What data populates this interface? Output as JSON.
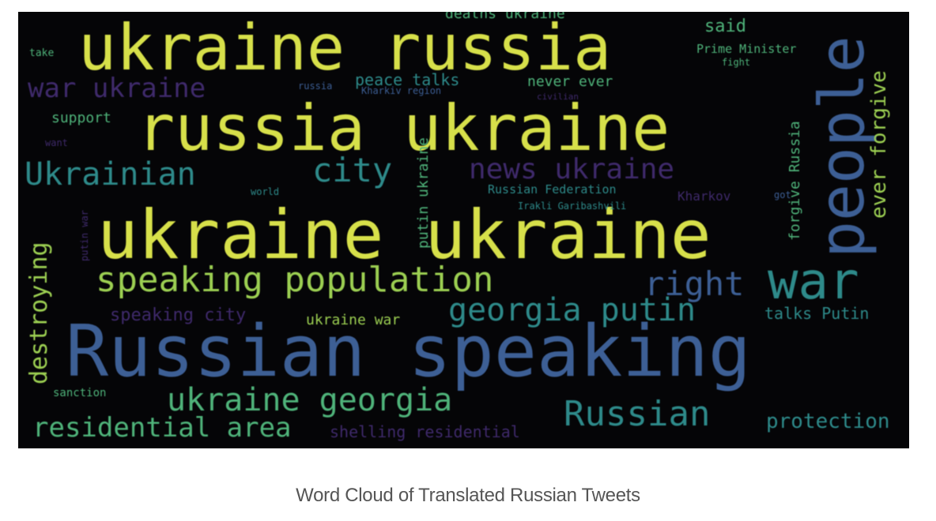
{
  "caption": "Word Cloud of Translated Russian Tweets",
  "palette": {
    "background": "#050507",
    "yellow": "#d7e04a",
    "lime": "#9ccf52",
    "green": "#4fb37a",
    "teal": "#2e8a8a",
    "blue": "#3d5f95",
    "purple": "#3f2a6b"
  },
  "words": [
    {
      "text": "ukraine russia",
      "color": "yellow"
    },
    {
      "text": "russia ukraine",
      "color": "yellow"
    },
    {
      "text": "ukraine ukraine",
      "color": "yellow"
    },
    {
      "text": "Russian speaking",
      "color": "blue"
    },
    {
      "text": "people",
      "color": "blue"
    },
    {
      "text": "war",
      "color": "teal"
    },
    {
      "text": "speaking population",
      "color": "lime"
    },
    {
      "text": "war ukraine",
      "color": "purple"
    },
    {
      "text": "Ukrainian",
      "color": "teal"
    },
    {
      "text": "city",
      "color": "teal"
    },
    {
      "text": "news ukraine",
      "color": "purple"
    },
    {
      "text": "right",
      "color": "blue"
    },
    {
      "text": "georgia putin",
      "color": "teal"
    },
    {
      "text": "ukraine georgia",
      "color": "green"
    },
    {
      "text": "Russian",
      "color": "teal"
    },
    {
      "text": "residential area",
      "color": "green"
    },
    {
      "text": "destroying",
      "color": "lime"
    },
    {
      "text": "ever forgive",
      "color": "lime"
    },
    {
      "text": "peace talks",
      "color": "teal"
    },
    {
      "text": "never ever",
      "color": "green"
    },
    {
      "text": "protection",
      "color": "teal"
    },
    {
      "text": "speaking city",
      "color": "purple"
    },
    {
      "text": "ukraine war",
      "color": "lime"
    },
    {
      "text": "talks Putin",
      "color": "teal"
    },
    {
      "text": "shelling residential",
      "color": "purple"
    },
    {
      "text": "said",
      "color": "green"
    },
    {
      "text": "Prime Minister",
      "color": "green"
    },
    {
      "text": "deaths ukraine",
      "color": "green"
    },
    {
      "text": "support",
      "color": "green"
    },
    {
      "text": "Russian Federation",
      "color": "teal"
    },
    {
      "text": "Kharkov",
      "color": "purple"
    },
    {
      "text": "sanction",
      "color": "green"
    },
    {
      "text": "putin ukraine",
      "color": "green"
    },
    {
      "text": "forgive Russia",
      "color": "green"
    },
    {
      "text": "take",
      "color": "green"
    },
    {
      "text": "fight",
      "color": "green"
    },
    {
      "text": "Kharkiv region",
      "color": "blue"
    },
    {
      "text": "russia",
      "color": "blue"
    },
    {
      "text": "putin war",
      "color": "purple"
    },
    {
      "text": "world",
      "color": "teal"
    },
    {
      "text": "Irakli Garibashvili",
      "color": "teal"
    },
    {
      "text": "want",
      "color": "purple"
    },
    {
      "text": "civilian",
      "color": "purple"
    },
    {
      "text": "got",
      "color": "blue"
    }
  ]
}
